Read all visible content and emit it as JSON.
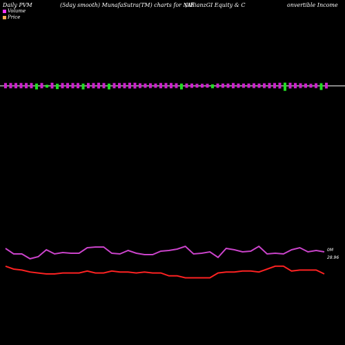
{
  "header": {
    "left": "Daily PVM",
    "smooth": "(5day smooth) MunafaSutra(TM) charts for NIE",
    "company": "(AllianzGI Equity & C",
    "company_cont": "onvertible  Income"
  },
  "legend": [
    {
      "label": "Volume",
      "color": "#ff33ff"
    },
    {
      "label": "Price",
      "color": "#ffaa55"
    }
  ],
  "chart_data": {
    "type": "line",
    "volume_axis_label": "0M",
    "price_axis_label": "28.96",
    "colors": {
      "volume_up": "#cc22cc",
      "volume_down": "#22dd22",
      "price": "#ff2222",
      "pvm": "#cc44cc",
      "baseline": "#ffffff"
    },
    "volume_bars": [
      {
        "v": 0.55,
        "d": "up"
      },
      {
        "v": 0.55,
        "d": "up"
      },
      {
        "v": 0.55,
        "d": "up"
      },
      {
        "v": 0.55,
        "d": "up"
      },
      {
        "v": 0.55,
        "d": "up"
      },
      {
        "v": 0.55,
        "d": "up"
      },
      {
        "v": 0.6,
        "d": "down"
      },
      {
        "v": 0.55,
        "d": "up"
      },
      {
        "v": 0.3,
        "d": "down"
      },
      {
        "v": 0.6,
        "d": "up"
      },
      {
        "v": 0.55,
        "d": "down"
      },
      {
        "v": 0.55,
        "d": "up"
      },
      {
        "v": 0.55,
        "d": "up"
      },
      {
        "v": 0.55,
        "d": "up"
      },
      {
        "v": 0.55,
        "d": "up"
      },
      {
        "v": 0.6,
        "d": "down"
      },
      {
        "v": 0.55,
        "d": "up"
      },
      {
        "v": 0.55,
        "d": "up"
      },
      {
        "v": 0.6,
        "d": "up"
      },
      {
        "v": 0.55,
        "d": "up"
      },
      {
        "v": 0.6,
        "d": "down"
      },
      {
        "v": 0.55,
        "d": "up"
      },
      {
        "v": 0.55,
        "d": "up"
      },
      {
        "v": 0.55,
        "d": "up"
      },
      {
        "v": 0.6,
        "d": "up"
      },
      {
        "v": 0.6,
        "d": "up"
      },
      {
        "v": 0.5,
        "d": "up"
      },
      {
        "v": 0.45,
        "d": "up"
      },
      {
        "v": 0.5,
        "d": "up"
      },
      {
        "v": 0.45,
        "d": "up"
      },
      {
        "v": 0.55,
        "d": "up"
      },
      {
        "v": 0.55,
        "d": "up"
      },
      {
        "v": 0.55,
        "d": "up"
      },
      {
        "v": 0.5,
        "d": "up"
      },
      {
        "v": 0.6,
        "d": "down"
      },
      {
        "v": 0.45,
        "d": "up"
      },
      {
        "v": 0.45,
        "d": "up"
      },
      {
        "v": 0.4,
        "d": "up"
      },
      {
        "v": 0.4,
        "d": "up"
      },
      {
        "v": 0.4,
        "d": "up"
      },
      {
        "v": 0.4,
        "d": "down"
      },
      {
        "v": 0.45,
        "d": "up"
      },
      {
        "v": 0.45,
        "d": "up"
      },
      {
        "v": 0.45,
        "d": "up"
      },
      {
        "v": 0.55,
        "d": "up"
      },
      {
        "v": 0.45,
        "d": "up"
      },
      {
        "v": 0.45,
        "d": "up"
      },
      {
        "v": 0.45,
        "d": "up"
      },
      {
        "v": 0.5,
        "d": "up"
      },
      {
        "v": 0.45,
        "d": "up"
      },
      {
        "v": 0.5,
        "d": "up"
      },
      {
        "v": 0.55,
        "d": "up"
      },
      {
        "v": 0.55,
        "d": "up"
      },
      {
        "v": 0.6,
        "d": "up"
      },
      {
        "v": 0.85,
        "d": "down"
      },
      {
        "v": 0.6,
        "d": "up"
      },
      {
        "v": 0.55,
        "d": "up"
      },
      {
        "v": 0.5,
        "d": "up"
      },
      {
        "v": 0.45,
        "d": "up"
      },
      {
        "v": 0.4,
        "d": "up"
      },
      {
        "v": 0.5,
        "d": "up"
      },
      {
        "v": 0.7,
        "d": "down"
      },
      {
        "v": 0.6,
        "d": "up"
      }
    ],
    "pvm_line": [
      9.4,
      8.6,
      8.6,
      7.9,
      8.2,
      9.2,
      8.6,
      8.8,
      8.7,
      8.7,
      9.5,
      9.6,
      9.6,
      8.7,
      8.6,
      9.1,
      8.7,
      8.5,
      8.5,
      9.0,
      9.1,
      9.3,
      9.7,
      8.6,
      8.7,
      8.9,
      8.1,
      9.4,
      9.2,
      8.9,
      9.0,
      9.7,
      8.6,
      8.7,
      8.6,
      9.2,
      9.5,
      8.9,
      9.1,
      8.9
    ],
    "price_line": [
      7.0,
      6.7,
      6.6,
      6.4,
      6.3,
      6.2,
      6.2,
      6.3,
      6.3,
      6.3,
      6.5,
      6.3,
      6.3,
      6.5,
      6.4,
      6.4,
      6.3,
      6.4,
      6.3,
      6.3,
      6.0,
      6.0,
      5.8,
      5.8,
      5.8,
      5.8,
      6.3,
      6.4,
      6.4,
      6.5,
      6.5,
      6.4,
      6.7,
      7.0,
      7.0,
      6.5,
      6.6,
      6.6,
      6.6,
      6.2
    ]
  }
}
